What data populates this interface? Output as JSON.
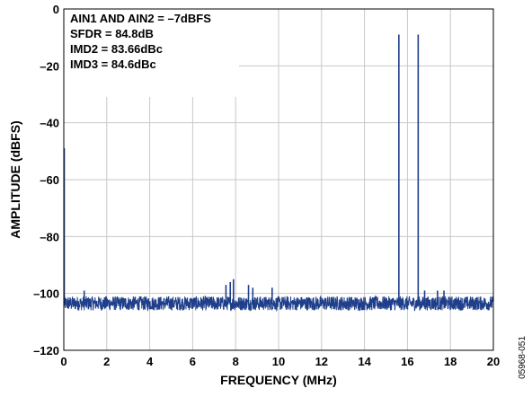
{
  "chart_data": {
    "type": "line",
    "title": "",
    "xlabel": "FREQUENCY (MHz)",
    "ylabel": "AMPLITUDE (dBFS)",
    "xlim": [
      0,
      20
    ],
    "ylim": [
      -120,
      0
    ],
    "x_ticks": [
      0,
      2,
      4,
      6,
      8,
      10,
      12,
      14,
      16,
      18,
      20
    ],
    "y_ticks": [
      0,
      -20,
      -40,
      -60,
      -80,
      -100,
      -120
    ],
    "x_tick_labels": [
      "0",
      "2",
      "4",
      "6",
      "8",
      "10",
      "12",
      "14",
      "16",
      "18",
      "20"
    ],
    "y_tick_labels": [
      "0",
      "–20",
      "–40",
      "–60",
      "–80",
      "–100",
      "–120"
    ],
    "grid": true,
    "line_color": "#1f3f8a",
    "noise_floor": [
      -106,
      -101
    ],
    "spurs": [
      {
        "x": 0.02,
        "y": -49
      },
      {
        "x": 0.95,
        "y": -99
      },
      {
        "x": 7.55,
        "y": -97
      },
      {
        "x": 7.75,
        "y": -96
      },
      {
        "x": 7.9,
        "y": -95
      },
      {
        "x": 8.6,
        "y": -97
      },
      {
        "x": 8.8,
        "y": -98
      },
      {
        "x": 9.7,
        "y": -98
      },
      {
        "x": 15.6,
        "y": -9
      },
      {
        "x": 16.5,
        "y": -9
      },
      {
        "x": 16.8,
        "y": -99
      },
      {
        "x": 17.4,
        "y": -99
      },
      {
        "x": 17.7,
        "y": -99
      }
    ],
    "annotations": [
      "AIN1 AND AIN2 = –7dBFS",
      "SFDR = 84.8dB",
      "IMD2 = 83.66dBc",
      "IMD3 = 84.6dBc"
    ]
  },
  "figure_id": "05968-051"
}
